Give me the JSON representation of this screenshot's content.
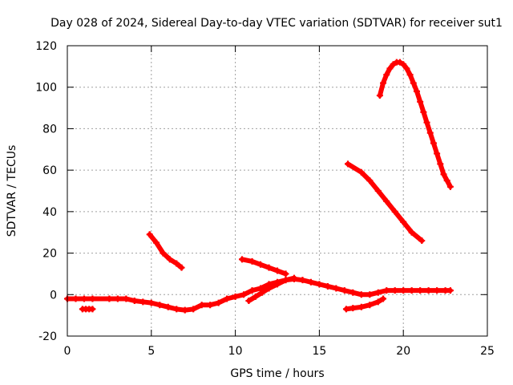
{
  "chart_data": {
    "type": "scatter",
    "title": "Day 028 of 2024, Sidereal Day-to-day VTEC variation (SDTVAR) for receiver sut1",
    "xlabel": "GPS time / hours",
    "ylabel": "SDTVAR / TECUs",
    "xlim": [
      0,
      25
    ],
    "ylim": [
      -20,
      120
    ],
    "x_ticks": [
      0,
      5,
      10,
      15,
      20,
      25
    ],
    "y_ticks": [
      -20,
      0,
      20,
      40,
      60,
      80,
      100,
      120
    ],
    "grid": true,
    "legend": "none",
    "marker": "plus",
    "series_color": "#ff0000",
    "series": [
      {
        "name": "arc-main-low",
        "x": [
          0.0,
          0.5,
          1.0,
          1.5,
          2.5,
          3.0,
          3.5,
          4.0,
          4.5,
          5.0,
          5.5,
          6.0,
          6.5,
          7.0,
          7.5,
          8.0,
          8.5,
          9.0,
          9.5,
          10.0,
          10.5,
          11.0,
          11.5,
          12.0,
          12.5,
          13.0,
          13.5,
          14.0,
          14.5,
          15.0,
          15.5,
          16.0,
          16.5,
          17.0,
          17.5,
          18.0,
          18.5,
          19.0,
          19.5,
          20.0,
          20.5,
          21.0,
          21.5,
          22.0,
          22.5,
          22.8
        ],
        "y": [
          -2.0,
          -2.0,
          -2.0,
          -2.0,
          -2.0,
          -2.0,
          -2.0,
          -3.0,
          -3.5,
          -4.0,
          -5.0,
          -6.0,
          -7.0,
          -7.5,
          -7.0,
          -5.0,
          -5.0,
          -4.0,
          -2.0,
          -1.0,
          0.0,
          2.0,
          3.0,
          5.0,
          6.0,
          7.0,
          7.5,
          7.0,
          6.0,
          5.0,
          4.0,
          3.0,
          2.0,
          1.0,
          0.0,
          0.0,
          1.0,
          2.0,
          2.0,
          2.0,
          2.0,
          2.0,
          2.0,
          2.0,
          2.0,
          2.0
        ]
      },
      {
        "name": "arc-dip-1h",
        "x": [
          0.9,
          1.1,
          1.3,
          1.5
        ],
        "y": [
          -7.0,
          -7.0,
          -7.0,
          -7.0
        ]
      },
      {
        "name": "arc-5h",
        "x": [
          4.9,
          5.3,
          5.7,
          6.1,
          6.5,
          6.8
        ],
        "y": [
          29.0,
          25.0,
          20.0,
          17.0,
          15.0,
          13.0
        ]
      },
      {
        "name": "arc-10h",
        "x": [
          10.4,
          11.0,
          11.5,
          12.0,
          12.5,
          13.0
        ],
        "y": [
          17.0,
          16.0,
          14.5,
          13.0,
          11.5,
          10.0
        ]
      },
      {
        "name": "arc-11h",
        "x": [
          10.8,
          11.2,
          11.6,
          12.0,
          12.5,
          13.0,
          13.5
        ],
        "y": [
          -3.0,
          -1.0,
          1.0,
          3.0,
          5.0,
          7.0,
          8.0
        ]
      },
      {
        "name": "arc-16h",
        "x": [
          16.6,
          17.0,
          17.5,
          18.0,
          18.5,
          18.8
        ],
        "y": [
          -7.0,
          -6.5,
          -6.0,
          -5.0,
          -3.5,
          -2.0
        ]
      },
      {
        "name": "arc-17h",
        "x": [
          16.7,
          17.5,
          18.0,
          18.5,
          19.0,
          19.5,
          20.0,
          20.5,
          21.1
        ],
        "y": [
          63.0,
          59.0,
          55.0,
          50.0,
          45.0,
          40.0,
          35.0,
          30.0,
          26.0
        ]
      },
      {
        "name": "arc-peak",
        "x": [
          18.6,
          18.8,
          19.0,
          19.2,
          19.4,
          19.6,
          19.8,
          20.0,
          20.2,
          20.4,
          20.6,
          20.8,
          21.0,
          21.2,
          21.4,
          21.6,
          21.8,
          22.0,
          22.2,
          22.4,
          22.6,
          22.8
        ],
        "y": [
          96.0,
          102.0,
          106.0,
          109.0,
          111.0,
          112.0,
          112.0,
          111.0,
          109.0,
          106.0,
          102.0,
          98.0,
          93.0,
          88.0,
          83.0,
          78.0,
          73.0,
          68.0,
          63.0,
          58.0,
          55.0,
          52.0
        ]
      }
    ]
  }
}
